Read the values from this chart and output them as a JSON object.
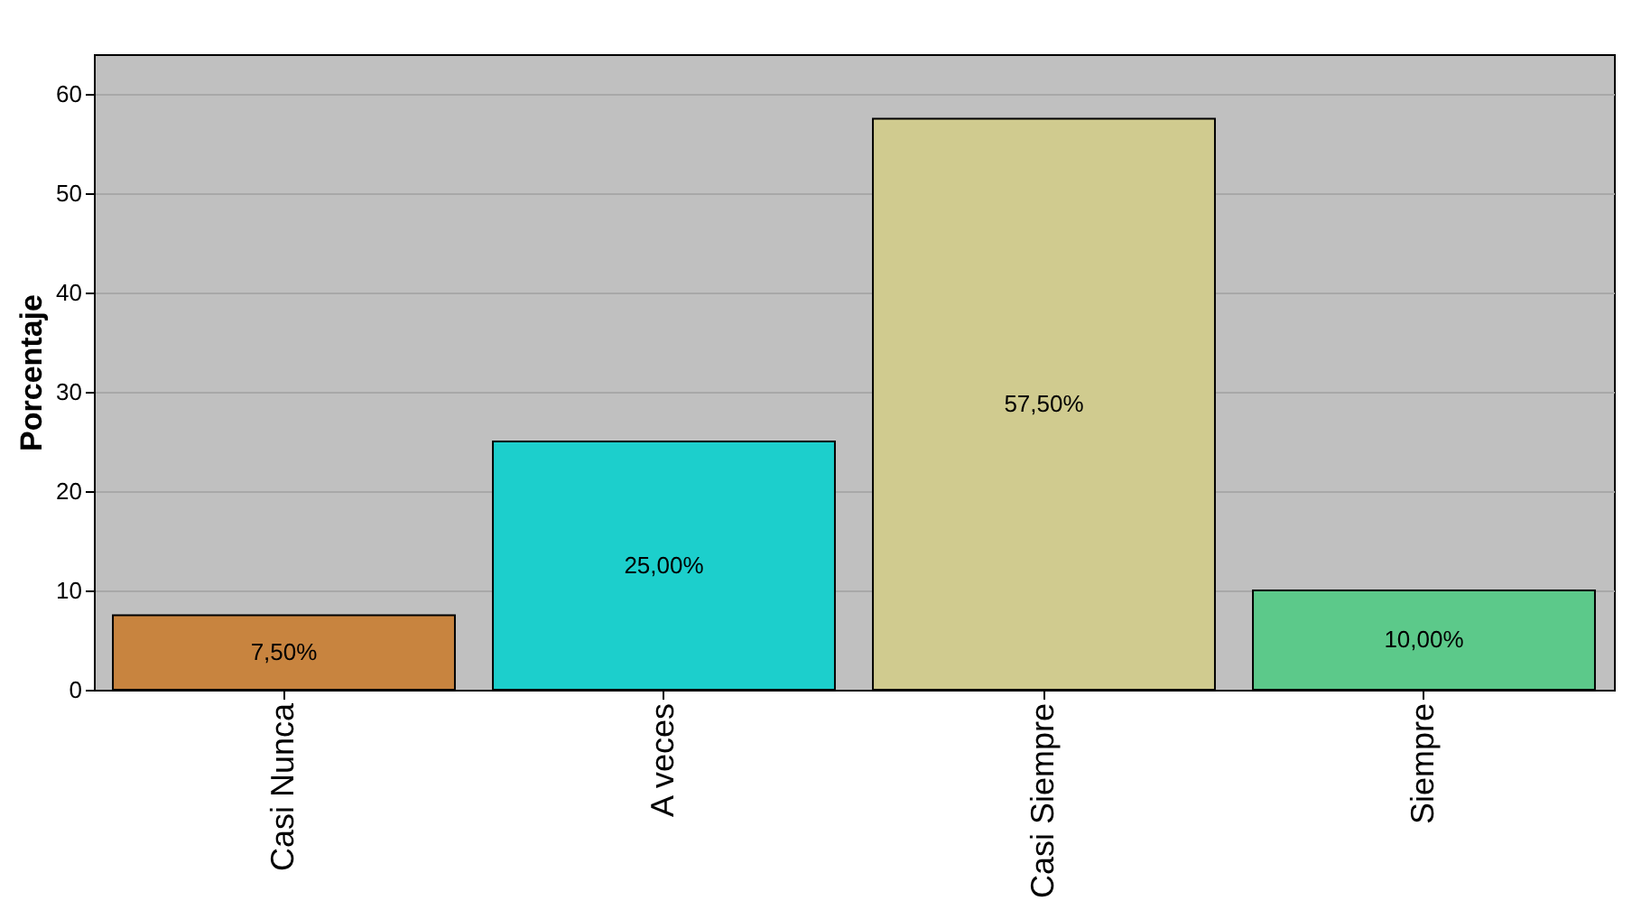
{
  "chart_data": {
    "type": "bar",
    "ylabel": "Porcentaje",
    "categories": [
      "Casi Nunca",
      "A veces",
      "Casi Siempre",
      "Siempre"
    ],
    "values": [
      7.5,
      25,
      57.5,
      10
    ],
    "colors": [
      "#c8843f",
      "#1ccfcc",
      "#d0cb8f",
      "#5cc98a"
    ],
    "value_labels": [
      "7,50%",
      "25,00%",
      "57,50%",
      "10,00%"
    ],
    "ylim": [
      0,
      64
    ],
    "yticks": [
      0,
      10,
      20,
      30,
      40,
      50,
      60
    ],
    "grid": "y"
  }
}
